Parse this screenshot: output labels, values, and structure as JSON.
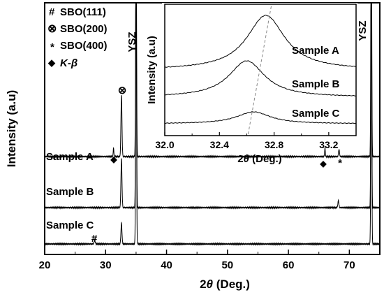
{
  "chart_data": [
    {
      "type": "line",
      "xlabel_prefix": "2",
      "xlabel_theta": "θ",
      "xlabel_suffix": " (Deg.)",
      "ylabel": "Intensity (a.u)",
      "xlim": [
        20,
        75
      ],
      "x_ticks": [
        "20",
        "30",
        "40",
        "50",
        "60",
        "70"
      ],
      "y_ticks_labeled": false,
      "grid": false,
      "legend": [
        {
          "symbol": "#",
          "label": "SBO(111)"
        },
        {
          "symbol": "⊗",
          "label": "SBO(200)"
        },
        {
          "symbol": "*",
          "label": "SBO(400)"
        },
        {
          "symbol": "◆",
          "label": "K-β"
        }
      ],
      "substrate_label": "YSZ",
      "series": [
        {
          "name": "Sample A",
          "peaks": [
            [
              31.3,
              "K-β"
            ],
            [
              32.6,
              "SBO(200)"
            ],
            [
              35.0,
              "YSZ"
            ],
            [
              66.0,
              "K-β"
            ],
            [
              68.3,
              "SBO(400)"
            ],
            [
              73.6,
              "YSZ"
            ]
          ]
        },
        {
          "name": "Sample B",
          "peaks": [
            [
              32.6,
              "SBO(200)"
            ],
            [
              35.0,
              "YSZ"
            ],
            [
              68.2,
              "SBO(400)"
            ],
            [
              73.6,
              "YSZ"
            ]
          ]
        },
        {
          "name": "Sample C",
          "peaks": [
            [
              28.2,
              "SBO(111)"
            ],
            [
              32.6,
              "SBO(200)"
            ],
            [
              35.0,
              "YSZ"
            ],
            [
              73.6,
              "YSZ"
            ]
          ]
        }
      ],
      "annotations": [
        {
          "symbol": "⊗",
          "x": 32.6,
          "series": "Sample A"
        },
        {
          "symbol": "◆",
          "x": 31.3,
          "series": "Sample A"
        },
        {
          "symbol": "◆",
          "x": 66.0,
          "series": "Sample A"
        },
        {
          "symbol": "*",
          "x": 68.3,
          "series": "Sample A"
        },
        {
          "symbol": "#",
          "x": 28.2,
          "series": "Sample C"
        }
      ]
    },
    {
      "type": "line",
      "inset": true,
      "xlabel_prefix": "2",
      "xlabel_theta": "θ",
      "xlabel_suffix": " (Deg.)",
      "ylabel": "Intensity (a.u)",
      "xlim": [
        32.0,
        33.4
      ],
      "x_ticks": [
        "32.0",
        "32.4",
        "32.8",
        "33.2"
      ],
      "series": [
        {
          "name": "Sample A",
          "peak_x": 32.74
        },
        {
          "name": "Sample B",
          "peak_x": 32.6
        },
        {
          "name": "Sample C",
          "peak_x": 32.65
        }
      ],
      "trend_line": {
        "style": "dashed",
        "from_x": 32.61,
        "to_x": 32.78
      }
    }
  ]
}
